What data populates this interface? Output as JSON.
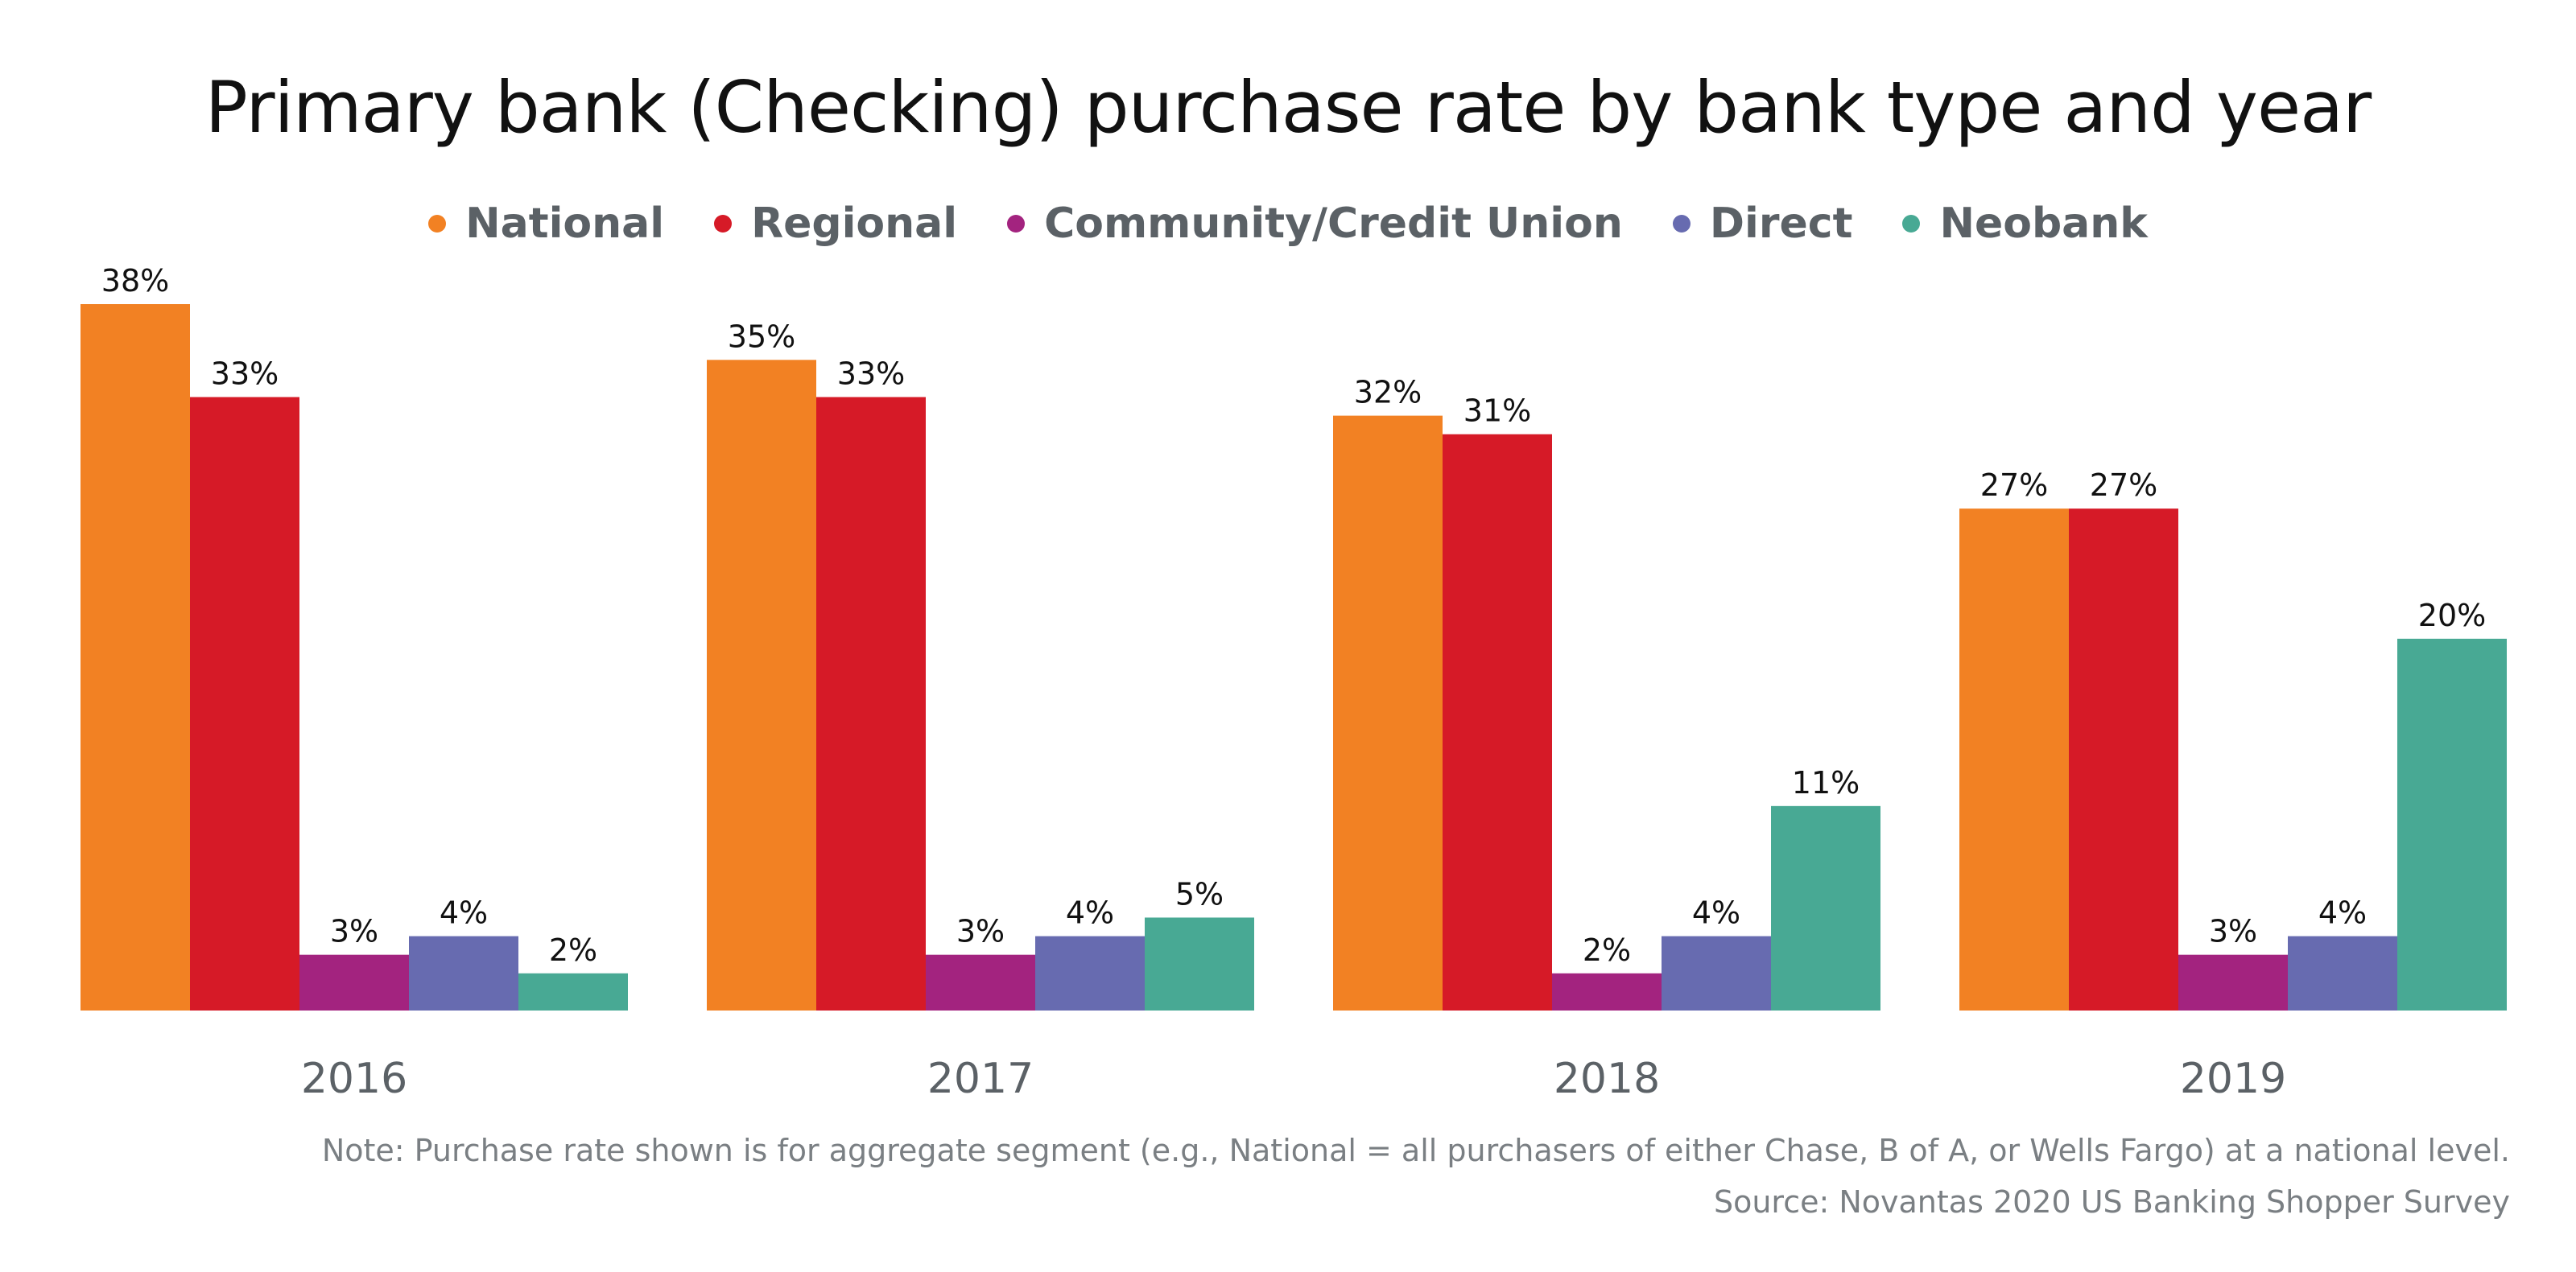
{
  "chart_data": {
    "type": "bar",
    "title": "Primary bank (Checking) purchase rate by bank type and year",
    "categories": [
      "2016",
      "2017",
      "2018",
      "2019"
    ],
    "series": [
      {
        "name": "National",
        "color": "#f28123",
        "values": [
          38,
          35,
          32,
          27
        ],
        "labels": [
          "38%",
          "35%",
          "32%",
          "27%"
        ]
      },
      {
        "name": "Regional",
        "color": "#d61a27",
        "values": [
          33,
          33,
          31,
          27
        ],
        "labels": [
          "33%",
          "33%",
          "31%",
          "27%"
        ]
      },
      {
        "name": "Community/Credit Union",
        "color": "#a3237f",
        "values": [
          3,
          3,
          2,
          3
        ],
        "labels": [
          "3%",
          "3%",
          "2%",
          "3%"
        ]
      },
      {
        "name": "Direct",
        "color": "#676bb0",
        "values": [
          4,
          4,
          4,
          4
        ],
        "labels": [
          "4%",
          "4%",
          "4%",
          "4%"
        ]
      },
      {
        "name": "Neobank",
        "color": "#48a994",
        "values": [
          2,
          5,
          11,
          20
        ],
        "labels": [
          "2%",
          "5%",
          "11%",
          "20%"
        ]
      }
    ],
    "ylim": [
      0,
      38
    ],
    "grid": false,
    "legend_position": "top-center",
    "xlabel": "",
    "ylabel": ""
  },
  "legend": [
    {
      "label": "National",
      "color": "#f28123"
    },
    {
      "label": "Regional",
      "color": "#d61a27"
    },
    {
      "label": "Community/Credit Union",
      "color": "#a3237f"
    },
    {
      "label": "Direct",
      "color": "#676bb0"
    },
    {
      "label": "Neobank",
      "color": "#48a994"
    }
  ],
  "note": "Note: Purchase rate shown is for aggregate segment (e.g., National = all purchasers of either Chase, B of A, or Wells Fargo) at a national level.",
  "source": "Source: Novantas 2020 US Banking Shopper Survey"
}
